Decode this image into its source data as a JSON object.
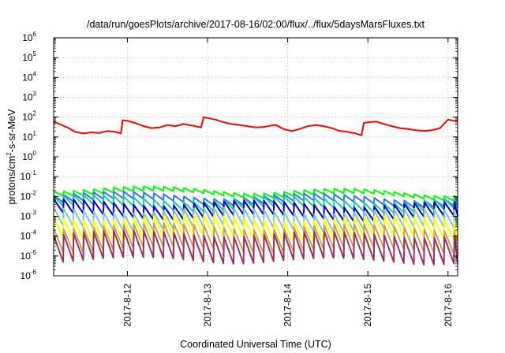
{
  "chart_data": {
    "type": "line",
    "title": "/data/run/goesPlots/archive/2017-08-16/02:00/flux/../flux/5daysMarsFluxes.txt",
    "xlabel": "Coordinated Universal Time (UTC)",
    "ylabel": {
      "base": "protons/cm",
      "sup": "2",
      "rest": "-s-sr-MeV"
    },
    "x_range_days": [
      11.08,
      16.12
    ],
    "x_ticks": [
      {
        "day": 12,
        "label": "2017-8-12"
      },
      {
        "day": 13,
        "label": "2017-8-13"
      },
      {
        "day": 14,
        "label": "2017-8-14"
      },
      {
        "day": 15,
        "label": "2017-8-15"
      },
      {
        "day": 16,
        "label": "2017-8-16"
      }
    ],
    "y_scale": "log",
    "y_range_exp": [
      -6,
      6
    ],
    "y_ticks": [
      {
        "exp": 6,
        "label": "6"
      },
      {
        "exp": 5,
        "label": "5"
      },
      {
        "exp": 4,
        "label": "4"
      },
      {
        "exp": 3,
        "label": "3"
      },
      {
        "exp": 2,
        "label": "2"
      },
      {
        "exp": 1,
        "label": "1"
      },
      {
        "exp": 0,
        "label": "0"
      },
      {
        "exp": -1,
        "label": "-1"
      },
      {
        "exp": -2,
        "label": "-2"
      },
      {
        "exp": -3,
        "label": "-3"
      },
      {
        "exp": -4,
        "label": "-4"
      },
      {
        "exp": -5,
        "label": "-5"
      },
      {
        "exp": -6,
        "label": "-6"
      }
    ],
    "grid": true,
    "legend": "none",
    "series": [
      {
        "color": "#ff0000",
        "kind": "red",
        "x": [
          11.08,
          11.15,
          11.25,
          11.35,
          11.45,
          11.55,
          11.65,
          11.75,
          11.85,
          11.92,
          11.94,
          12.0,
          12.1,
          12.2,
          12.3,
          12.4,
          12.5,
          12.6,
          12.7,
          12.8,
          12.92,
          12.95,
          13.0,
          13.1,
          13.2,
          13.3,
          13.4,
          13.5,
          13.6,
          13.7,
          13.8,
          13.85,
          13.95,
          14.05,
          14.15,
          14.25,
          14.35,
          14.45,
          14.55,
          14.65,
          14.75,
          14.85,
          14.92,
          14.95,
          15.0,
          15.1,
          15.2,
          15.3,
          15.4,
          15.5,
          15.6,
          15.7,
          15.8,
          15.9,
          16.0,
          16.12
        ],
        "y": [
          60,
          45,
          30,
          18,
          15,
          17,
          16,
          20,
          18,
          15,
          70,
          65,
          50,
          35,
          28,
          30,
          40,
          35,
          45,
          38,
          30,
          100,
          90,
          75,
          55,
          45,
          40,
          35,
          30,
          32,
          38,
          40,
          25,
          20,
          25,
          35,
          40,
          35,
          28,
          20,
          18,
          15,
          12,
          50,
          55,
          60,
          45,
          35,
          28,
          25,
          22,
          20,
          22,
          28,
          75,
          60
        ]
      },
      {
        "color": "#00ff00",
        "kind": "saw",
        "base": 0.028,
        "drop": 1.7,
        "trend": -0.05
      },
      {
        "color": "#2e7bd9",
        "kind": "saw",
        "base": 0.014,
        "drop": 2.2,
        "trend": -0.04
      },
      {
        "color": "#1dcaa6",
        "kind": "saw",
        "base": 0.009,
        "drop": 3.0,
        "trend": -0.03
      },
      {
        "color": "#0000cc",
        "kind": "saw",
        "base": 0.0055,
        "drop": 5.0,
        "trend": -0.03
      },
      {
        "color": "#7fc8c8",
        "kind": "saw",
        "base": 0.0022,
        "drop": 8.0,
        "trend": -0.02
      },
      {
        "color": "#ffff00",
        "kind": "saw",
        "base": 0.0009,
        "drop": 10.0,
        "trend": -0.02
      },
      {
        "color": "#c9a24d",
        "kind": "saw",
        "base": 0.00035,
        "drop": 15.0,
        "trend": -0.02
      },
      {
        "color": "#993366",
        "kind": "saw",
        "base": 0.00015,
        "drop": 22.0,
        "trend": -0.02
      }
    ],
    "saw_period_days": 0.125,
    "saw_start_day": 11.08
  }
}
